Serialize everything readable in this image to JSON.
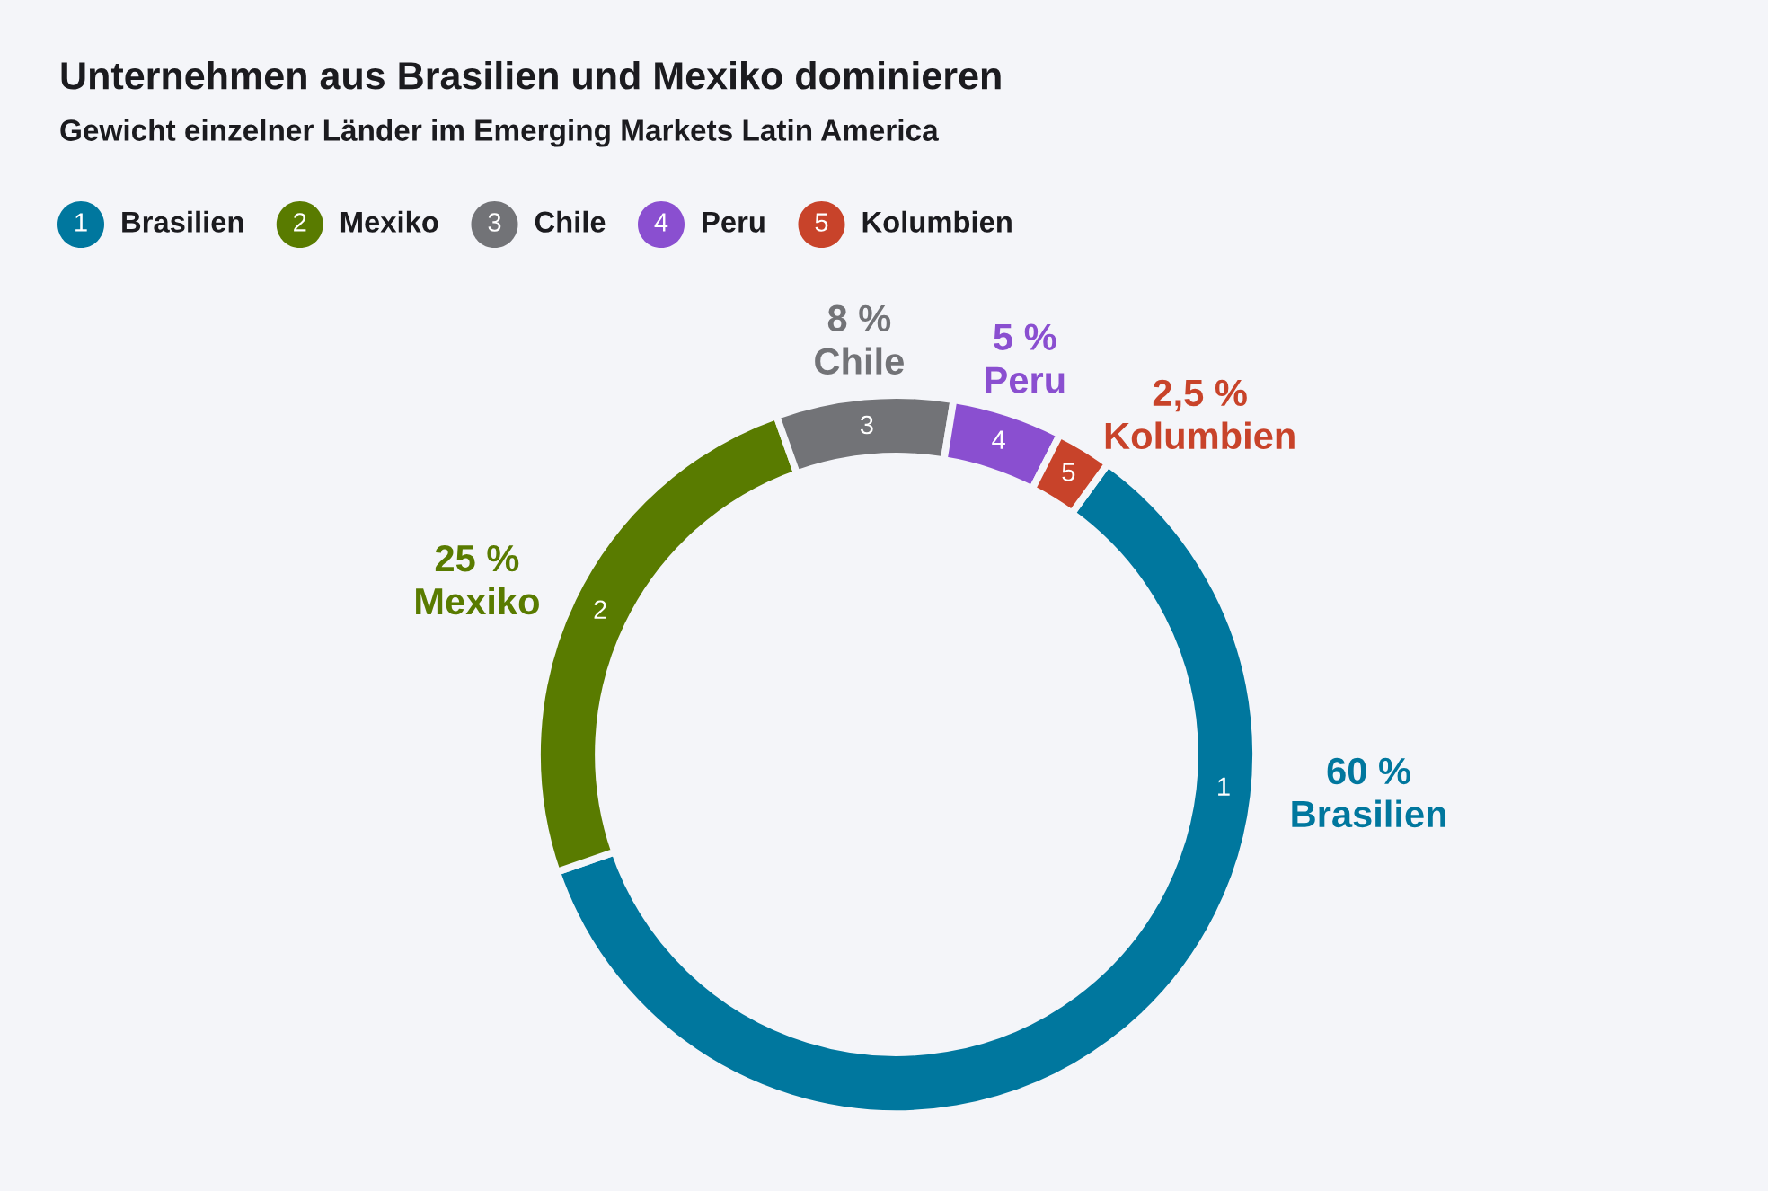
{
  "chart_data": {
    "type": "donut",
    "title": "Unternehmen aus Brasilien und Mexiko dominieren",
    "subtitle": "Gewicht einzelner Länder im Emerging Markets Latin America",
    "categories": [
      "Brasilien",
      "Mexiko",
      "Chile",
      "Peru",
      "Kolumbien"
    ],
    "values": [
      60,
      25,
      8,
      5,
      2.5
    ],
    "colors": [
      "#00779e",
      "#597b00",
      "#727377",
      "#8a4fd0",
      "#c8432a"
    ],
    "value_labels": [
      "60 %",
      "25 %",
      "8 %",
      "5 %",
      "2,5 %"
    ],
    "annotations": [
      "1",
      "2",
      "3",
      "4",
      "5"
    ],
    "legend": "top left"
  }
}
